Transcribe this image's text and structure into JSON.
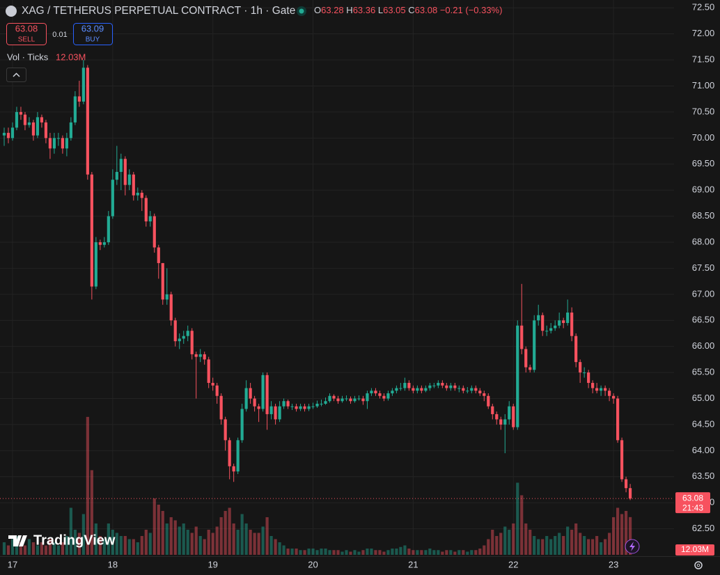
{
  "header": {
    "symbol": "XAG / TETHERUS PERPETUAL CONTRACT · 1h · Gate",
    "ohlc_prefixes": [
      "O",
      "H",
      "L",
      "C"
    ],
    "change": "−0.21 (−0.33%)",
    "sell_price": "63.08",
    "sell_label": "SELL",
    "spread": "0.01",
    "buy_price": "63.09",
    "buy_label": "BUY",
    "volume_title": "Vol · Ticks",
    "volume_value": "12.03M",
    "brand": "TradingView",
    "last_price_label": "63.08",
    "countdown": "21:43",
    "last_volume_label": "12.03M"
  },
  "chart_data": {
    "type": "candlestick",
    "up_color": "#22ab94",
    "down_color": "#f7525f",
    "grid": true,
    "xlim": [
      -3,
      158.5
    ],
    "ylim": [
      62.0,
      72.65
    ],
    "y2lim": [
      0,
      177
    ],
    "xticks": [
      {
        "value": 0,
        "label": "17"
      },
      {
        "value": 24,
        "label": "18"
      },
      {
        "value": 48,
        "label": "19"
      },
      {
        "value": 72,
        "label": "20"
      },
      {
        "value": 96,
        "label": "21"
      },
      {
        "value": 120,
        "label": "22"
      },
      {
        "value": 144,
        "label": "23"
      }
    ],
    "yticks": [
      {
        "value": 62.5,
        "label": "62.50"
      },
      {
        "value": 63,
        "label": "63.00"
      },
      {
        "value": 63.5,
        "label": "63.50"
      },
      {
        "value": 64,
        "label": "64.00"
      },
      {
        "value": 64.5,
        "label": "64.50"
      },
      {
        "value": 65,
        "label": "65.00"
      },
      {
        "value": 65.5,
        "label": "65.50"
      },
      {
        "value": 66,
        "label": "66.00"
      },
      {
        "value": 66.5,
        "label": "66.50"
      },
      {
        "value": 67,
        "label": "67.00"
      },
      {
        "value": 67.5,
        "label": "67.50"
      },
      {
        "value": 68,
        "label": "68.00"
      },
      {
        "value": 68.5,
        "label": "68.50"
      },
      {
        "value": 69,
        "label": "69.00"
      },
      {
        "value": 69.5,
        "label": "69.50"
      },
      {
        "value": 70,
        "label": "70.00"
      },
      {
        "value": 70.5,
        "label": "70.50"
      },
      {
        "value": 71,
        "label": "71.00"
      },
      {
        "value": 71.5,
        "label": "71.50"
      },
      {
        "value": 72,
        "label": "72.00"
      },
      {
        "value": 72.5,
        "label": "72.50"
      }
    ],
    "x": [
      -2,
      -1,
      0,
      1,
      2,
      3,
      4,
      5,
      6,
      7,
      8,
      9,
      10,
      11,
      12,
      13,
      14,
      15,
      16,
      17,
      18,
      19,
      20,
      21,
      22,
      23,
      24,
      25,
      26,
      27,
      28,
      29,
      30,
      31,
      32,
      33,
      34,
      35,
      36,
      37,
      38,
      39,
      40,
      41,
      42,
      43,
      44,
      45,
      46,
      47,
      48,
      49,
      50,
      51,
      52,
      53,
      54,
      55,
      56,
      57,
      58,
      59,
      60,
      61,
      62,
      63,
      64,
      65,
      66,
      67,
      68,
      69,
      70,
      71,
      72,
      73,
      74,
      75,
      76,
      77,
      78,
      79,
      80,
      81,
      82,
      83,
      84,
      85,
      86,
      87,
      88,
      89,
      90,
      91,
      92,
      93,
      94,
      95,
      96,
      97,
      98,
      99,
      100,
      101,
      102,
      103,
      104,
      105,
      106,
      107,
      108,
      109,
      110,
      111,
      112,
      113,
      114,
      115,
      116,
      117,
      118,
      119,
      120,
      121,
      122,
      123,
      124,
      125,
      126,
      127,
      128,
      129,
      130,
      131,
      132,
      133,
      134,
      135,
      136,
      137,
      138,
      139,
      140,
      141,
      142,
      143,
      144,
      145,
      146,
      147,
      148
    ],
    "open": [
      70.05,
      70.1,
      70.0,
      70.2,
      70.5,
      70.45,
      70.25,
      70.3,
      70.05,
      70.4,
      70.3,
      70.0,
      69.8,
      70.0,
      70.0,
      69.8,
      70.0,
      70.3,
      70.8,
      70.7,
      71.35,
      69.3,
      67.15,
      68.0,
      67.95,
      68.0,
      68.5,
      69.2,
      69.35,
      69.6,
      69.1,
      69.3,
      68.9,
      68.95,
      68.85,
      68.4,
      68.5,
      67.9,
      67.6,
      66.9,
      67.0,
      66.5,
      66.1,
      66.15,
      66.2,
      66.3,
      65.85,
      65.8,
      65.85,
      65.75,
      65.3,
      65.25,
      65.05,
      64.6,
      64.2,
      63.7,
      63.6,
      64.2,
      64.8,
      65.2,
      65.0,
      64.85,
      64.8,
      65.45,
      64.7,
      64.85,
      64.6,
      64.85,
      64.95,
      64.85,
      64.85,
      64.8,
      64.85,
      64.8,
      64.85,
      64.85,
      64.9,
      64.9,
      64.95,
      65.05,
      65.0,
      64.95,
      65.0,
      65.0,
      64.95,
      65.0,
      65.0,
      64.95,
      65.1,
      65.15,
      65.1,
      65.05,
      65.0,
      65.1,
      65.15,
      65.2,
      65.2,
      65.3,
      65.2,
      65.15,
      65.2,
      65.15,
      65.2,
      65.25,
      65.25,
      65.3,
      65.25,
      65.2,
      65.25,
      65.2,
      65.2,
      65.15,
      65.15,
      65.2,
      65.15,
      65.1,
      65.05,
      64.85,
      64.7,
      64.6,
      64.5,
      64.6,
      64.85,
      64.45,
      66.4,
      65.95,
      65.6,
      65.55,
      66.5,
      66.6,
      66.3,
      66.3,
      66.35,
      66.4,
      66.5,
      66.45,
      66.65,
      66.2,
      65.7,
      65.5,
      65.5,
      65.3,
      65.2,
      65.15,
      65.2,
      65.15,
      65.05,
      65.0,
      64.2,
      63.45,
      63.28
    ],
    "high": [
      70.2,
      70.2,
      70.3,
      70.6,
      70.6,
      70.5,
      70.4,
      70.35,
      70.5,
      70.45,
      70.35,
      70.1,
      70.1,
      70.1,
      70.05,
      70.1,
      70.4,
      70.9,
      71.1,
      71.5,
      71.4,
      69.35,
      68.1,
      68.05,
      68.1,
      68.6,
      69.4,
      69.85,
      69.7,
      69.65,
      69.4,
      69.35,
      69.05,
      69.0,
      68.9,
      68.6,
      68.55,
      67.95,
      67.6,
      67.5,
      67.05,
      66.55,
      66.25,
      66.3,
      66.4,
      66.35,
      65.9,
      65.95,
      65.9,
      65.8,
      65.4,
      65.3,
      65.1,
      64.65,
      64.25,
      63.75,
      64.25,
      64.9,
      65.35,
      65.3,
      65.05,
      64.9,
      65.5,
      65.5,
      64.95,
      64.9,
      64.95,
      65.0,
      64.98,
      64.9,
      64.9,
      64.9,
      64.9,
      64.9,
      64.92,
      64.96,
      64.98,
      65.02,
      65.1,
      65.08,
      65.05,
      65.05,
      65.06,
      65.04,
      65.05,
      65.06,
      65.05,
      65.15,
      65.2,
      65.2,
      65.15,
      65.1,
      65.15,
      65.2,
      65.25,
      65.3,
      65.4,
      65.35,
      65.25,
      65.25,
      65.25,
      65.25,
      65.3,
      65.3,
      65.35,
      65.35,
      65.3,
      65.3,
      65.3,
      65.25,
      65.25,
      65.22,
      65.25,
      65.25,
      65.2,
      65.15,
      65.1,
      64.9,
      64.75,
      64.65,
      64.7,
      64.95,
      64.9,
      66.5,
      67.2,
      66.0,
      65.65,
      66.6,
      66.8,
      66.65,
      66.4,
      66.45,
      66.5,
      66.65,
      66.55,
      66.9,
      66.75,
      66.25,
      65.75,
      65.6,
      65.55,
      65.35,
      65.3,
      65.25,
      65.25,
      65.2,
      65.1,
      65.05,
      64.25,
      63.5,
      63.36
    ],
    "low": [
      69.85,
      69.9,
      69.95,
      70.15,
      70.35,
      70.15,
      70.2,
      69.95,
      70.0,
      70.2,
      69.9,
      69.6,
      69.7,
      69.85,
      69.7,
      69.65,
      69.95,
      70.25,
      70.6,
      70.65,
      69.2,
      66.9,
      67.1,
      67.85,
      67.9,
      67.95,
      68.45,
      69.1,
      69.0,
      68.9,
      69.0,
      68.8,
      68.8,
      68.6,
      68.3,
      68.3,
      67.8,
      67.3,
      66.8,
      66.8,
      66.4,
      66.0,
      65.95,
      66.05,
      66.1,
      65.75,
      65.0,
      65.7,
      65.65,
      65.2,
      65.15,
      64.9,
      64.5,
      64.0,
      63.45,
      63.4,
      63.55,
      64.15,
      64.75,
      64.9,
      64.75,
      64.55,
      64.75,
      64.4,
      64.6,
      64.5,
      64.55,
      64.8,
      64.8,
      64.78,
      64.75,
      64.76,
      64.75,
      64.76,
      64.8,
      64.82,
      64.85,
      64.88,
      64.92,
      64.95,
      64.9,
      64.92,
      64.95,
      64.9,
      64.92,
      64.96,
      64.88,
      64.8,
      65.05,
      65.05,
      65.0,
      64.95,
      64.96,
      65.05,
      65.1,
      65.15,
      65.15,
      65.15,
      65.1,
      65.1,
      65.1,
      65.12,
      65.15,
      65.2,
      65.2,
      65.2,
      65.15,
      65.15,
      65.15,
      65.12,
      65.1,
      65.1,
      65.1,
      65.1,
      65.05,
      64.95,
      64.8,
      64.6,
      64.5,
      64.4,
      63.95,
      64.5,
      64.4,
      64.4,
      65.85,
      65.5,
      65.5,
      65.5,
      66.4,
      66.2,
      66.2,
      66.25,
      66.3,
      66.35,
      66.35,
      66.4,
      66.1,
      65.6,
      65.3,
      65.4,
      65.2,
      65.1,
      65.1,
      65.05,
      65.05,
      64.95,
      64.9,
      64.15,
      63.4,
      63.2,
      63.05
    ],
    "close": [
      70.1,
      70.0,
      70.2,
      70.5,
      70.45,
      70.25,
      70.3,
      70.05,
      70.4,
      70.3,
      70.0,
      69.8,
      70.0,
      70.0,
      69.8,
      70.0,
      70.3,
      70.8,
      70.7,
      71.35,
      69.3,
      67.15,
      68.0,
      67.95,
      68.0,
      68.5,
      69.2,
      69.35,
      69.6,
      69.1,
      69.3,
      68.9,
      68.95,
      68.85,
      68.4,
      68.5,
      67.9,
      67.6,
      66.9,
      67.0,
      66.5,
      66.1,
      66.15,
      66.2,
      66.3,
      65.85,
      65.8,
      65.85,
      65.75,
      65.3,
      65.25,
      65.05,
      64.6,
      64.2,
      63.7,
      63.6,
      64.2,
      64.8,
      65.2,
      65.0,
      64.85,
      64.8,
      65.45,
      64.7,
      64.85,
      64.6,
      64.85,
      64.95,
      64.85,
      64.85,
      64.8,
      64.85,
      64.8,
      64.85,
      64.85,
      64.9,
      64.9,
      64.95,
      65.05,
      65.0,
      64.95,
      65.0,
      65.0,
      64.95,
      65.0,
      65.0,
      64.95,
      65.1,
      65.15,
      65.1,
      65.05,
      65.0,
      65.1,
      65.15,
      65.2,
      65.2,
      65.3,
      65.2,
      65.15,
      65.2,
      65.15,
      65.2,
      65.25,
      65.25,
      65.3,
      65.25,
      65.2,
      65.25,
      65.2,
      65.2,
      65.15,
      65.15,
      65.2,
      65.15,
      65.1,
      65.05,
      64.85,
      64.7,
      64.6,
      64.5,
      64.6,
      64.85,
      64.45,
      66.4,
      65.95,
      65.6,
      65.55,
      66.5,
      66.6,
      66.3,
      66.3,
      66.35,
      66.4,
      66.5,
      66.45,
      66.65,
      66.2,
      65.7,
      65.5,
      65.5,
      65.3,
      65.2,
      65.15,
      65.2,
      65.15,
      65.05,
      65.0,
      64.2,
      63.45,
      63.28,
      63.08
    ],
    "volume": [
      4,
      3,
      5,
      6,
      4,
      3,
      5,
      4,
      3,
      4,
      3,
      5,
      4,
      3,
      4,
      6,
      15,
      8,
      7,
      13,
      44,
      27,
      10,
      6,
      5,
      10,
      8,
      7,
      6,
      6,
      5,
      5,
      4,
      6,
      8,
      7,
      18,
      16,
      14,
      10,
      12,
      11,
      9,
      10,
      8,
      7,
      9,
      6,
      5,
      8,
      7,
      9,
      12,
      14,
      15,
      10,
      8,
      13,
      10,
      8,
      7,
      7,
      9,
      12,
      6,
      5,
      4,
      3,
      2,
      2,
      2,
      1.5,
      1.5,
      2,
      2,
      1.5,
      2,
      2,
      1.5,
      1.5,
      1.5,
      1,
      1.5,
      1,
      1.5,
      1,
      1.5,
      2,
      2,
      1.5,
      1.5,
      1,
      1.5,
      2,
      2,
      2.5,
      3,
      2,
      1.5,
      1.5,
      1.5,
      1.5,
      2,
      1.5,
      1.5,
      1,
      1.5,
      1.5,
      1,
      1.5,
      1.5,
      1,
      1.5,
      1.5,
      2,
      3,
      5,
      8,
      6,
      7,
      9,
      8,
      10,
      23,
      19,
      10,
      8,
      6,
      5,
      5,
      6,
      5,
      6,
      7,
      6,
      9,
      8,
      10,
      7,
      6,
      5,
      5,
      6,
      4,
      5,
      7,
      12,
      15,
      13,
      14,
      12.03
    ]
  }
}
